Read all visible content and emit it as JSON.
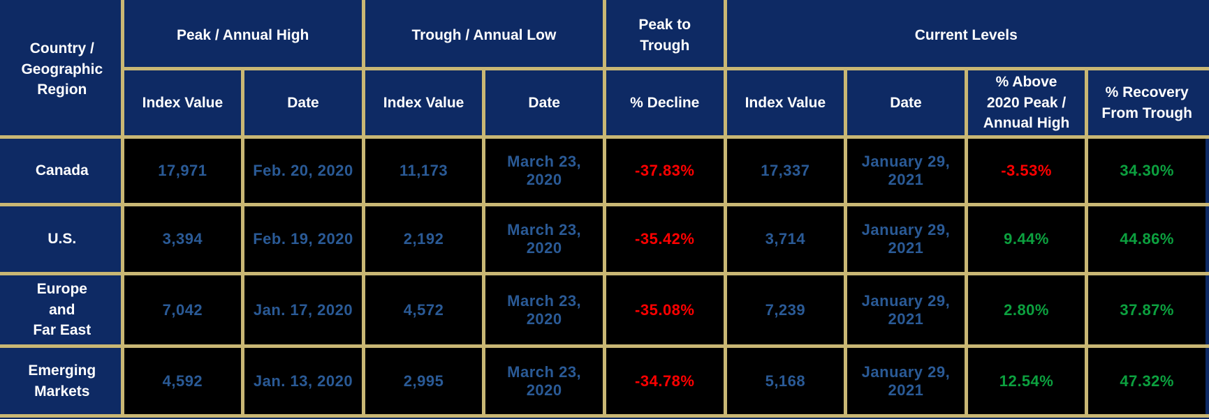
{
  "colors": {
    "frame_bg": "#0e2a64",
    "header_bg": "#0e2a64",
    "header_text": "#ffffff",
    "border": "#c9b774",
    "cell_bg": "#000000",
    "value_blue": "#2a5a96",
    "negative_red": "#ff0000",
    "positive_green": "#0ca13f"
  },
  "header": {
    "corner": "Country /\nGeographic\nRegion",
    "groups": [
      {
        "label": "Peak / Annual High"
      },
      {
        "label": "Trough / Annual Low"
      },
      {
        "label": "Peak to\nTrough"
      },
      {
        "label": "Current Levels"
      }
    ],
    "subheaders": [
      "Index Value",
      "Date",
      "Index Value",
      "Date",
      "% Decline",
      "Index Value",
      "Date",
      "% Above\n2020 Peak /\nAnnual High",
      "% Recovery\nFrom Trough"
    ]
  },
  "rows": [
    {
      "region": "Canada",
      "peak_index": "17,971",
      "peak_date": "Feb. 20, 2020",
      "trough_index": "11,173",
      "trough_date": "March 23, 2020",
      "pct_decline": "-37.83%",
      "current_index": "17,337",
      "current_date": "January 29, 2021",
      "pct_above_peak": "-3.53%",
      "pct_recovery": "34.30%"
    },
    {
      "region": "U.S.",
      "peak_index": "3,394",
      "peak_date": "Feb. 19, 2020",
      "trough_index": "2,192",
      "trough_date": "March 23, 2020",
      "pct_decline": "-35.42%",
      "current_index": "3,714",
      "current_date": "January 29, 2021",
      "pct_above_peak": "9.44%",
      "pct_recovery": "44.86%"
    },
    {
      "region": "Europe\nand\nFar East",
      "peak_index": "7,042",
      "peak_date": "Jan. 17, 2020",
      "trough_index": "4,572",
      "trough_date": "March 23, 2020",
      "pct_decline": "-35.08%",
      "current_index": "7,239",
      "current_date": "January 29, 2021",
      "pct_above_peak": "2.80%",
      "pct_recovery": "37.87%"
    },
    {
      "region": "Emerging\nMarkets",
      "peak_index": "4,592",
      "peak_date": "Jan. 13, 2020",
      "trough_index": "2,995",
      "trough_date": "March 23, 2020",
      "pct_decline": "-34.78%",
      "current_index": "5,168",
      "current_date": "January 29, 2021",
      "pct_above_peak": "12.54%",
      "pct_recovery": "47.32%"
    }
  ],
  "chart_data": {
    "type": "table",
    "columns": [
      "Country / Geographic Region",
      "Peak / Annual High - Index Value",
      "Peak / Annual High - Date",
      "Trough / Annual Low - Index Value",
      "Trough / Annual Low - Date",
      "Peak to Trough - % Decline",
      "Current Levels - Index Value",
      "Current Levels - Date",
      "Current Levels - % Above 2020 Peak / Annual High",
      "Current Levels - % Recovery From Trough"
    ],
    "rows": [
      [
        "Canada",
        17971,
        "Feb. 20, 2020",
        11173,
        "March 23, 2020",
        -37.83,
        17337,
        "January 29, 2021",
        -3.53,
        34.3
      ],
      [
        "U.S.",
        3394,
        "Feb. 19, 2020",
        2192,
        "March 23, 2020",
        -35.42,
        3714,
        "January 29, 2021",
        9.44,
        44.86
      ],
      [
        "Europe and Far East",
        7042,
        "Jan. 17, 2020",
        4572,
        "March 23, 2020",
        -35.08,
        7239,
        "January 29, 2021",
        2.8,
        37.87
      ],
      [
        "Emerging Markets",
        4592,
        "Jan. 13, 2020",
        2995,
        "March 23, 2020",
        -34.78,
        5168,
        "January 29, 2021",
        12.54,
        47.32
      ]
    ]
  }
}
